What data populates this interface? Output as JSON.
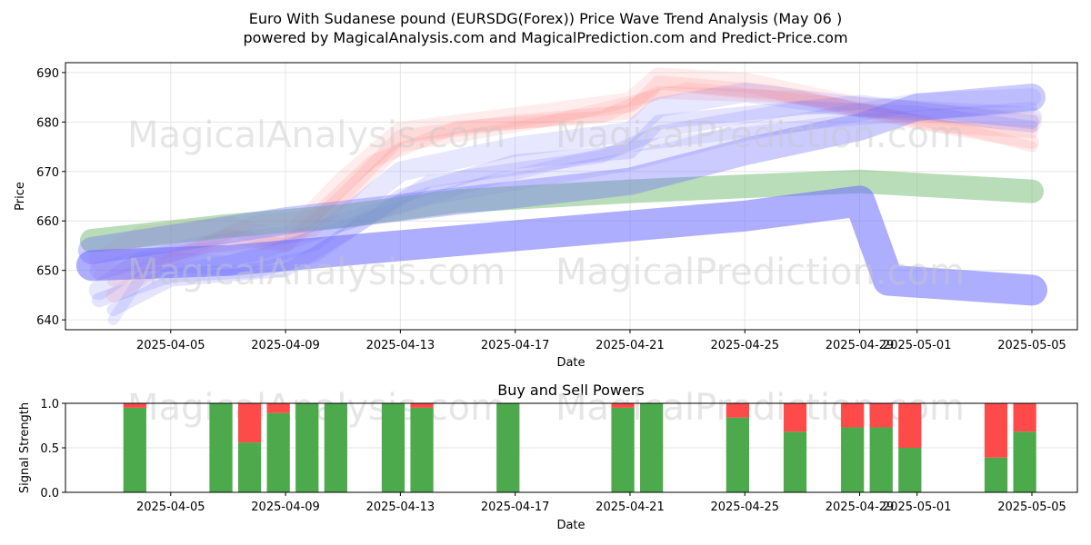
{
  "title_line1": "Euro With Sudanese pound (EURSDG(Forex)) Price Wave Trend Analysis (May 06 )",
  "title_line2": "powered by MagicalAnalysis.com and MagicalPrediction.com and Predict-Price.com",
  "watermarks": [
    "MagicalAnalysis.com",
    "MagicalPrediction.com"
  ],
  "colors": {
    "red": "#ff6b6b",
    "blue": "#6b6bff",
    "green": "#7fbf7f",
    "bar_buy": "#4caa4c",
    "bar_sell": "#ff4a4a"
  },
  "chart_data": [
    {
      "type": "line",
      "xlabel": "Date",
      "ylabel": "Price",
      "ylim": [
        638,
        692
      ],
      "yticks": [
        640,
        650,
        660,
        670,
        680,
        690
      ],
      "xlim": [
        "2025-04-01T08:00",
        "2025-05-06T14:00"
      ],
      "xticks": [
        "2025-04-05",
        "2025-04-09",
        "2025-04-13",
        "2025-04-17",
        "2025-04-21",
        "2025-04-25",
        "2025-04-29",
        "2025-05-01",
        "2025-05-05"
      ],
      "grid": true,
      "bands": [
        {
          "color": "red",
          "opacity": 0.12,
          "width": 22,
          "points": [
            [
              "2025-04-02T12:00",
              652
            ],
            [
              "2025-04-04",
              657
            ],
            [
              "2025-04-07",
              659
            ],
            [
              "2025-04-09",
              656
            ],
            [
              "2025-04-11",
              668
            ],
            [
              "2025-04-13",
              678
            ],
            [
              "2025-04-17",
              681
            ],
            [
              "2025-04-21",
              684
            ],
            [
              "2025-04-22",
              689
            ],
            [
              "2025-04-25",
              688
            ],
            [
              "2025-04-29",
              683
            ],
            [
              "2025-05-05",
              680
            ]
          ]
        },
        {
          "color": "red",
          "opacity": 0.14,
          "width": 16,
          "points": [
            [
              "2025-04-03",
              645
            ],
            [
              "2025-04-05",
              652
            ],
            [
              "2025-04-07",
              657
            ],
            [
              "2025-04-09",
              655
            ],
            [
              "2025-04-11",
              665
            ],
            [
              "2025-04-13",
              677
            ],
            [
              "2025-04-17",
              680
            ],
            [
              "2025-04-21",
              682
            ],
            [
              "2025-04-22",
              688
            ],
            [
              "2025-04-26",
              686
            ],
            [
              "2025-05-01",
              680
            ],
            [
              "2025-05-05",
              676
            ]
          ]
        },
        {
          "color": "red",
          "opacity": 0.14,
          "width": 14,
          "points": [
            [
              "2025-04-03",
              648
            ],
            [
              "2025-04-06",
              655
            ],
            [
              "2025-04-08",
              660
            ],
            [
              "2025-04-10",
              661
            ],
            [
              "2025-04-12",
              672
            ],
            [
              "2025-04-15",
              679
            ],
            [
              "2025-04-20",
              681
            ],
            [
              "2025-04-22",
              686
            ],
            [
              "2025-04-27",
              685
            ],
            [
              "2025-05-02",
              679
            ],
            [
              "2025-05-05",
              678
            ]
          ]
        },
        {
          "color": "red",
          "opacity": 0.12,
          "width": 12,
          "points": [
            [
              "2025-04-02T12:00",
              649
            ],
            [
              "2025-04-05",
              654
            ],
            [
              "2025-04-08",
              655
            ],
            [
              "2025-04-10",
              658
            ],
            [
              "2025-04-13",
              675
            ],
            [
              "2025-04-18",
              680
            ],
            [
              "2025-04-23",
              687
            ],
            [
              "2025-04-28",
              684
            ],
            [
              "2025-05-03",
              678
            ],
            [
              "2025-05-05",
              675
            ]
          ]
        },
        {
          "color": "blue",
          "opacity": 0.16,
          "width": 22,
          "points": [
            [
              "2025-04-02T12:00",
              646
            ],
            [
              "2025-04-04",
              652
            ],
            [
              "2025-04-07",
              651
            ],
            [
              "2025-04-10",
              656
            ],
            [
              "2025-04-13",
              670
            ],
            [
              "2025-04-17",
              675
            ],
            [
              "2025-04-21",
              678
            ],
            [
              "2025-04-22",
              683
            ],
            [
              "2025-04-25",
              686
            ],
            [
              "2025-04-29",
              683
            ],
            [
              "2025-05-05",
              681
            ]
          ]
        },
        {
          "color": "blue",
          "opacity": 0.18,
          "width": 16,
          "points": [
            [
              "2025-04-02T12:00",
              644
            ],
            [
              "2025-04-05",
              649
            ],
            [
              "2025-04-08",
              650
            ],
            [
              "2025-04-10",
              653
            ],
            [
              "2025-04-13",
              665
            ],
            [
              "2025-04-17",
              672
            ],
            [
              "2025-04-21",
              674
            ],
            [
              "2025-04-22",
              680
            ],
            [
              "2025-04-29",
              684
            ],
            [
              "2025-05-05",
              680
            ]
          ]
        },
        {
          "color": "blue",
          "opacity": 0.18,
          "width": 14,
          "points": [
            [
              "2025-04-03",
              642
            ],
            [
              "2025-04-05",
              648
            ],
            [
              "2025-04-09",
              650
            ],
            [
              "2025-04-11",
              657
            ],
            [
              "2025-04-14",
              668
            ],
            [
              "2025-04-20",
              673
            ],
            [
              "2025-04-22",
              678
            ],
            [
              "2025-04-27",
              683
            ],
            [
              "2025-05-01",
              682
            ],
            [
              "2025-05-05",
              679
            ]
          ]
        },
        {
          "color": "blue",
          "opacity": 0.15,
          "width": 20,
          "points": [
            [
              "2025-04-02T12:00",
              650
            ],
            [
              "2025-04-06",
              655
            ],
            [
              "2025-04-10",
              658
            ],
            [
              "2025-04-14",
              665
            ],
            [
              "2025-04-21",
              672
            ],
            [
              "2025-04-25",
              678
            ],
            [
              "2025-04-29",
              682
            ],
            [
              "2025-05-01",
              684
            ],
            [
              "2025-05-05",
              685
            ]
          ]
        },
        {
          "color": "blue",
          "opacity": 0.14,
          "width": 12,
          "points": [
            [
              "2025-04-03",
              640
            ],
            [
              "2025-04-04",
              649
            ],
            [
              "2025-04-08",
              653
            ],
            [
              "2025-04-12",
              661
            ],
            [
              "2025-04-16",
              668
            ],
            [
              "2025-04-21",
              675
            ],
            [
              "2025-04-28",
              680
            ],
            [
              "2025-05-05",
              683
            ]
          ]
        },
        {
          "color": "green",
          "opacity": 0.55,
          "width": 26,
          "points": [
            [
              "2025-04-02T06:00",
              656
            ],
            [
              "2025-04-07",
              659
            ],
            [
              "2025-04-11",
              661
            ],
            [
              "2025-04-15",
              664
            ],
            [
              "2025-04-21",
              666
            ],
            [
              "2025-04-25",
              667
            ],
            [
              "2025-04-29",
              668
            ],
            [
              "2025-05-05",
              666
            ]
          ]
        },
        {
          "color": "blue",
          "opacity": 0.55,
          "width": 34,
          "points": [
            [
              "2025-04-02T06:00",
              651
            ],
            [
              "2025-04-07",
              652
            ],
            [
              "2025-04-11",
              654
            ],
            [
              "2025-04-15",
              656
            ],
            [
              "2025-04-21",
              659
            ],
            [
              "2025-04-25",
              661
            ],
            [
              "2025-04-29",
              664
            ],
            [
              "2025-04-30",
              648
            ],
            [
              "2025-05-05",
              646
            ]
          ]
        },
        {
          "color": "blue",
          "opacity": 0.35,
          "width": 30,
          "points": [
            [
              "2025-04-02T06:00",
              654
            ],
            [
              "2025-04-09",
              660
            ],
            [
              "2025-04-15",
              664
            ],
            [
              "2025-04-21",
              668
            ],
            [
              "2025-04-25",
              674
            ],
            [
              "2025-04-29",
              679
            ],
            [
              "2025-05-01",
              683
            ],
            [
              "2025-05-05",
              685
            ]
          ]
        }
      ]
    },
    {
      "type": "bar",
      "title": "Buy and Sell Powers",
      "xlabel": "Date",
      "ylabel": "Signal Strength",
      "ylim": [
        0,
        1
      ],
      "yticks": [
        "0.0",
        "0.5",
        "1.0"
      ],
      "xticks": [
        "2025-04-05",
        "2025-04-09",
        "2025-04-13",
        "2025-04-17",
        "2025-04-21",
        "2025-04-25",
        "2025-04-29",
        "2025-05-01",
        "2025-05-05"
      ],
      "series": [
        {
          "name": "buy",
          "values": [
            0.95,
            1.0,
            0.56,
            0.89,
            1.0,
            1.0,
            1.0,
            0.95,
            1.0,
            0.95,
            1.0,
            0.84,
            0.68,
            0.73,
            0.73,
            0.5,
            0.39,
            0.68
          ]
        },
        {
          "name": "sell",
          "values": [
            0.05,
            0.0,
            0.44,
            0.11,
            0.0,
            0.0,
            0.0,
            0.05,
            0.0,
            0.05,
            0.0,
            0.16,
            0.32,
            0.27,
            0.27,
            0.5,
            0.61,
            0.32
          ]
        }
      ],
      "categories": [
        "2025-04-04",
        "2025-04-07",
        "2025-04-08",
        "2025-04-09",
        "2025-04-10",
        "2025-04-11",
        "2025-04-13",
        "2025-04-14",
        "2025-04-17",
        "2025-04-21",
        "2025-04-22",
        "2025-04-25",
        "2025-04-27",
        "2025-04-29",
        "2025-04-30",
        "2025-05-01",
        "2025-05-04",
        "2025-05-05"
      ]
    }
  ]
}
